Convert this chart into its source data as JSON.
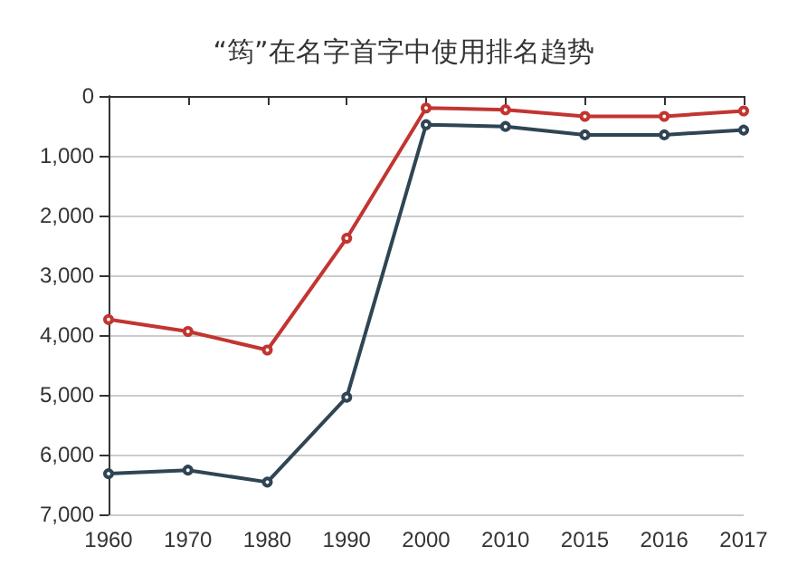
{
  "chart_data": {
    "type": "line",
    "title": "“筠”在名字首字中使用排名趋势",
    "categories": [
      "1960",
      "1970",
      "1980",
      "1990",
      "2000",
      "2010",
      "2015",
      "2016",
      "2017"
    ],
    "series": [
      {
        "color": "#c23531",
        "values": [
          3740,
          3940,
          4250,
          2380,
          200,
          230,
          340,
          340,
          250
        ]
      },
      {
        "color": "#2f4554",
        "values": [
          6320,
          6260,
          6460,
          5040,
          480,
          510,
          650,
          650,
          570
        ]
      }
    ],
    "ylim": [
      7000,
      0
    ],
    "yticks": [
      0,
      {
        "value": 1000,
        "label": "1,000"
      },
      {
        "value": 2000,
        "label": "2,000"
      },
      {
        "value": 3000,
        "label": "3,000"
      },
      {
        "value": 4000,
        "label": "4,000"
      },
      {
        "value": 5000,
        "label": "5,000"
      },
      {
        "value": 6000,
        "label": "6,000"
      },
      {
        "value": 7000,
        "label": "7,000"
      }
    ],
    "grid": "y",
    "marker": "circle",
    "line_style": "solid"
  }
}
